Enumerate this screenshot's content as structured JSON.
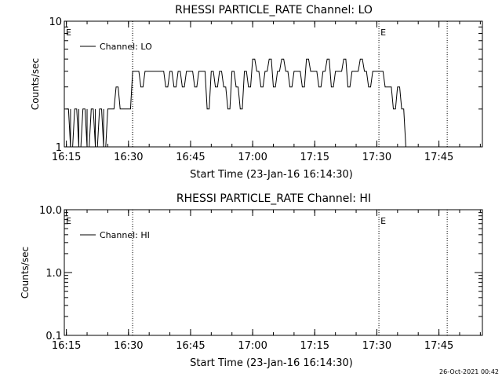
{
  "footer_date": "26-Oct-2021 00:42",
  "chart_data": [
    {
      "type": "line",
      "title": "RHESSI PARTICLE_RATE Channel: LO",
      "xlabel": "Start Time (23-Jan-16 16:14:30)",
      "ylabel": "Counts/sec",
      "yscale": "log",
      "ylim": [
        1,
        10
      ],
      "ytick_labels": [
        "1",
        "10"
      ],
      "xlim": [
        "16:14:30",
        "17:55:30"
      ],
      "xtick_labels": [
        "16:15",
        "16:30",
        "16:45",
        "17:00",
        "17:15",
        "17:30",
        "17:45"
      ],
      "xticks": [
        "16:15",
        "16:30",
        "16:45",
        "17:00",
        "17:15",
        "17:30",
        "17:45"
      ],
      "legend": {
        "position": "top-left",
        "entries": [
          "Channel: LO"
        ]
      },
      "markers": [
        {
          "time": "16:14:30",
          "label": "E"
        },
        {
          "time": "17:30:30",
          "label": "E"
        }
      ],
      "dotted_lines": [
        "16:31",
        "16:31",
        "17:30:30",
        "17:47"
      ],
      "series": [
        {
          "name": "Channel: LO",
          "x": [
            "16:15",
            "16:16",
            "16:17",
            "16:18",
            "16:19",
            "16:20",
            "16:21",
            "16:22",
            "16:23",
            "16:24",
            "16:25",
            "16:26",
            "16:27",
            "16:28",
            "16:29",
            "16:30",
            "16:31",
            "16:32",
            "16:33",
            "16:34",
            "16:35",
            "16:36",
            "16:37",
            "16:38",
            "16:39",
            "16:40",
            "16:41",
            "16:42",
            "16:43",
            "16:44",
            "16:45",
            "16:46",
            "16:47",
            "16:48",
            "16:49",
            "16:50",
            "16:51",
            "16:52",
            "16:53",
            "16:54",
            "16:55",
            "16:56",
            "16:57",
            "16:58",
            "16:59",
            "17:00",
            "17:01",
            "17:02",
            "17:03",
            "17:04",
            "17:05",
            "17:06",
            "17:07",
            "17:08",
            "17:09",
            "17:10",
            "17:11",
            "17:12",
            "17:13",
            "17:14",
            "17:15",
            "17:16",
            "17:17",
            "17:18",
            "17:19",
            "17:20",
            "17:21",
            "17:22",
            "17:23",
            "17:24",
            "17:25",
            "17:26",
            "17:27",
            "17:28",
            "17:29",
            "17:30",
            "17:31",
            "17:32",
            "17:33",
            "17:34",
            "17:35",
            "17:36",
            "17:37",
            "17:38",
            "17:39",
            "17:40",
            "17:41"
          ],
          "y": [
            2,
            1,
            2,
            1,
            2,
            1,
            2,
            1,
            2,
            1,
            2,
            2,
            3,
            2,
            2,
            2,
            4,
            4,
            3,
            4,
            4,
            4,
            4,
            4,
            3,
            4,
            3,
            4,
            3,
            4,
            4,
            3,
            4,
            4,
            2,
            4,
            3,
            4,
            3,
            2,
            4,
            3,
            2,
            4,
            3,
            5,
            4,
            3,
            4,
            5,
            3,
            4,
            5,
            4,
            3,
            4,
            4,
            3,
            5,
            4,
            4,
            3,
            4,
            5,
            3,
            4,
            4,
            5,
            3,
            4,
            4,
            5,
            4,
            3,
            4,
            4,
            4,
            3,
            3,
            2,
            3,
            2,
            1,
            1,
            1,
            1,
            1
          ],
          "dropouts": [
            "16:16",
            "16:18",
            "16:20",
            "16:22",
            "16:24"
          ]
        }
      ]
    },
    {
      "type": "line",
      "title": "RHESSI PARTICLE_RATE Channel: HI",
      "xlabel": "Start Time (23-Jan-16 16:14:30)",
      "ylabel": "Counts/sec",
      "yscale": "log",
      "ylim": [
        0.1,
        10
      ],
      "ytick_labels": [
        "0.1",
        "1.0",
        "10.0"
      ],
      "xlim": [
        "16:14:30",
        "17:55:30"
      ],
      "xtick_labels": [
        "16:15",
        "16:30",
        "16:45",
        "17:00",
        "17:15",
        "17:30",
        "17:45"
      ],
      "xticks": [
        "16:15",
        "16:30",
        "16:45",
        "17:00",
        "17:15",
        "17:30",
        "17:45"
      ],
      "legend": {
        "position": "top-left",
        "entries": [
          "Channel: HI"
        ]
      },
      "markers": [
        {
          "time": "16:14:30",
          "label": "E"
        },
        {
          "time": "17:30:30",
          "label": "E"
        }
      ],
      "dotted_lines": [
        "16:31",
        "17:30:30",
        "17:47"
      ],
      "series": [
        {
          "name": "Channel: HI",
          "x": [],
          "y": []
        }
      ]
    }
  ]
}
